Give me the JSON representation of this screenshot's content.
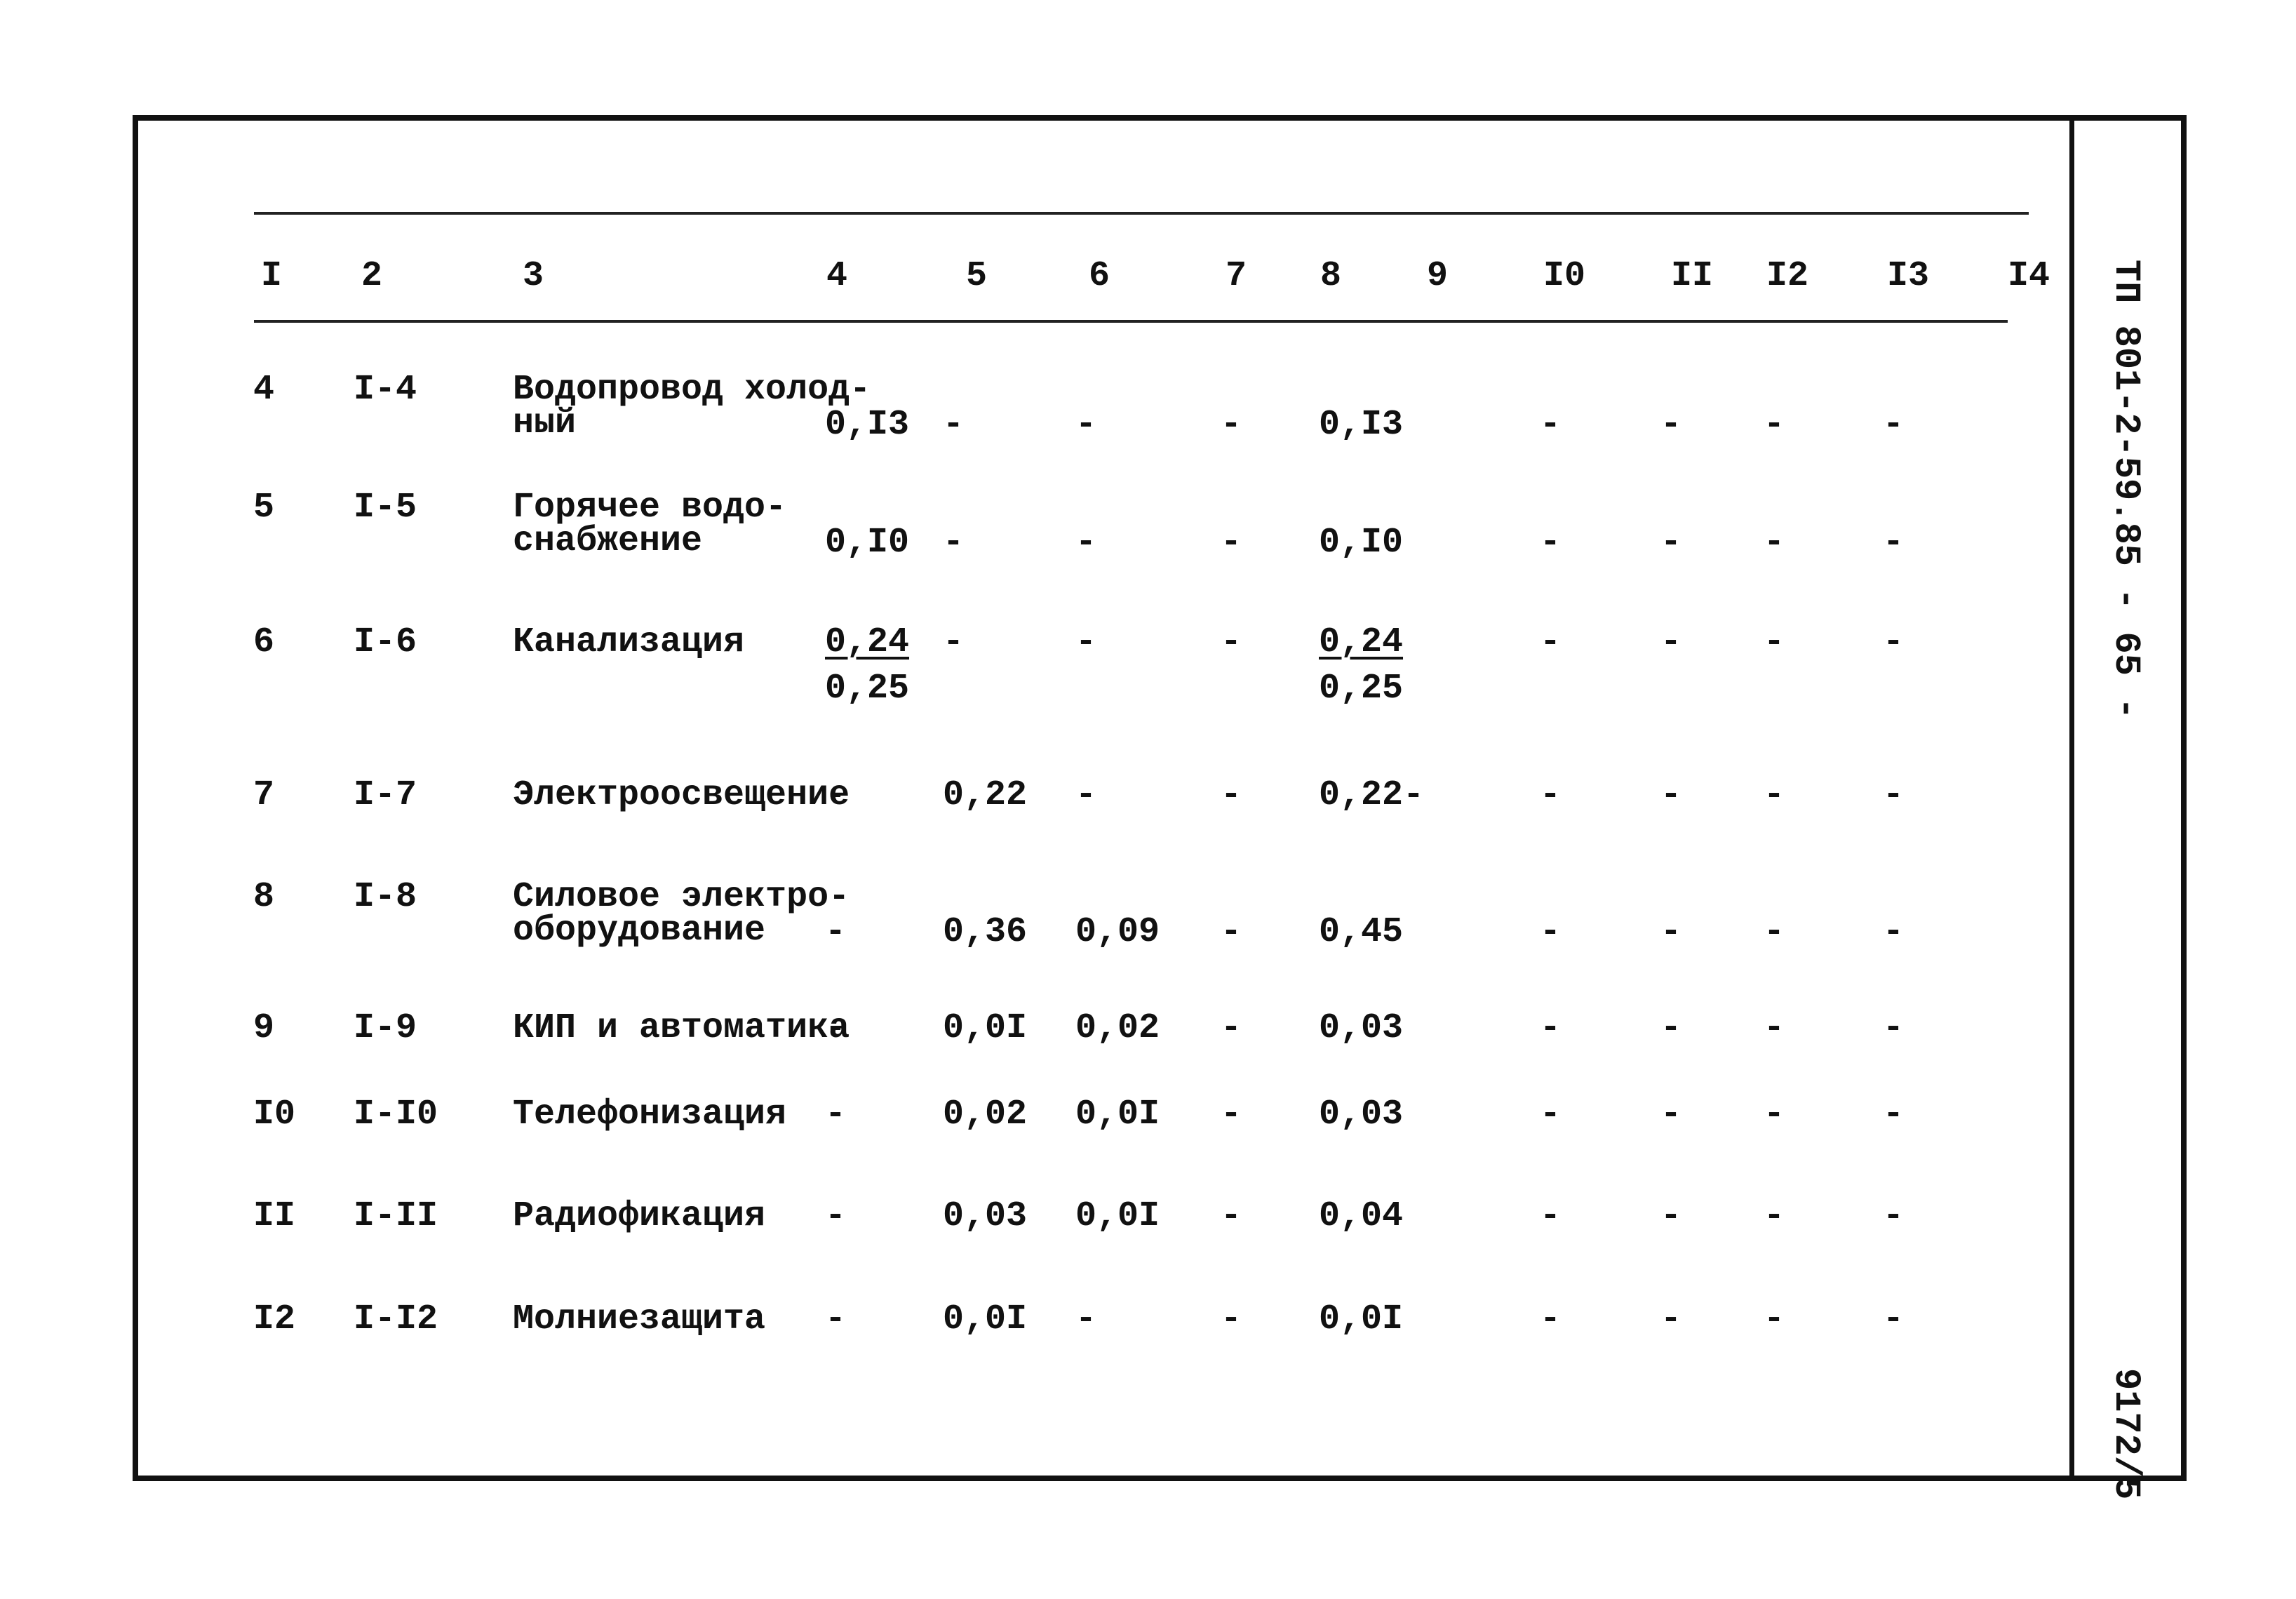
{
  "table": {
    "header": [
      "I",
      "2",
      "3",
      "4",
      "5",
      "6",
      "7",
      "8",
      "9",
      "I0",
      "II",
      "I2",
      "I3",
      "I4"
    ],
    "rows": [
      [
        "4",
        "I-4",
        "Водопровод холод-\nный",
        "0,I3",
        "-",
        "-",
        "-",
        "0,I3",
        "",
        "-",
        "-",
        "-",
        "-",
        ""
      ],
      [
        "5",
        "I-5",
        "Горячее водо-\nснабжение",
        "0,I0",
        "-",
        "-",
        "-",
        "0,I0",
        "",
        "-",
        "-",
        "-",
        "-",
        ""
      ],
      [
        "6",
        "I-6",
        "Канализация",
        {
          "numerator": "0,24",
          "denominator": "0,25"
        },
        "-",
        "-",
        "-",
        {
          "numerator": "0,24",
          "denominator": "0,25"
        },
        "",
        "-",
        "-",
        "-",
        "-",
        ""
      ],
      [
        "7",
        "I-7",
        "Электроосвещение",
        "-",
        "0,22",
        "-",
        "-",
        "0,22-",
        "",
        "-",
        "-",
        "-",
        "-",
        ""
      ],
      [
        "8",
        "I-8",
        "Силовое электро-\nоборудование",
        "-",
        "0,36",
        "0,09",
        "-",
        "0,45",
        "",
        "-",
        "-",
        "-",
        "-",
        ""
      ],
      [
        "9",
        "I-9",
        "КИП и автоматика",
        "-",
        "0,0I",
        "0,02",
        "-",
        "0,03",
        "",
        "-",
        "-",
        "-",
        "-",
        ""
      ],
      [
        "I0",
        "I-I0",
        "Телефонизация",
        "-",
        "0,02",
        "0,0I",
        "-",
        "0,03",
        "",
        "-",
        "-",
        "-",
        "-",
        ""
      ],
      [
        "II",
        "I-II",
        "Радиофикация",
        "-",
        "0,03",
        "0,0I",
        "-",
        "0,04",
        "",
        "-",
        "-",
        "-",
        "-",
        ""
      ],
      [
        "I2",
        "I-I2",
        "Молниезащита",
        "-",
        "0,0I",
        "-",
        "-",
        "0,0I",
        "",
        "-",
        "-",
        "-",
        "-",
        ""
      ]
    ]
  },
  "stamp": {
    "document_code": "ТП 801-2-59.85 - 65 -",
    "sheet": "9172/5"
  }
}
